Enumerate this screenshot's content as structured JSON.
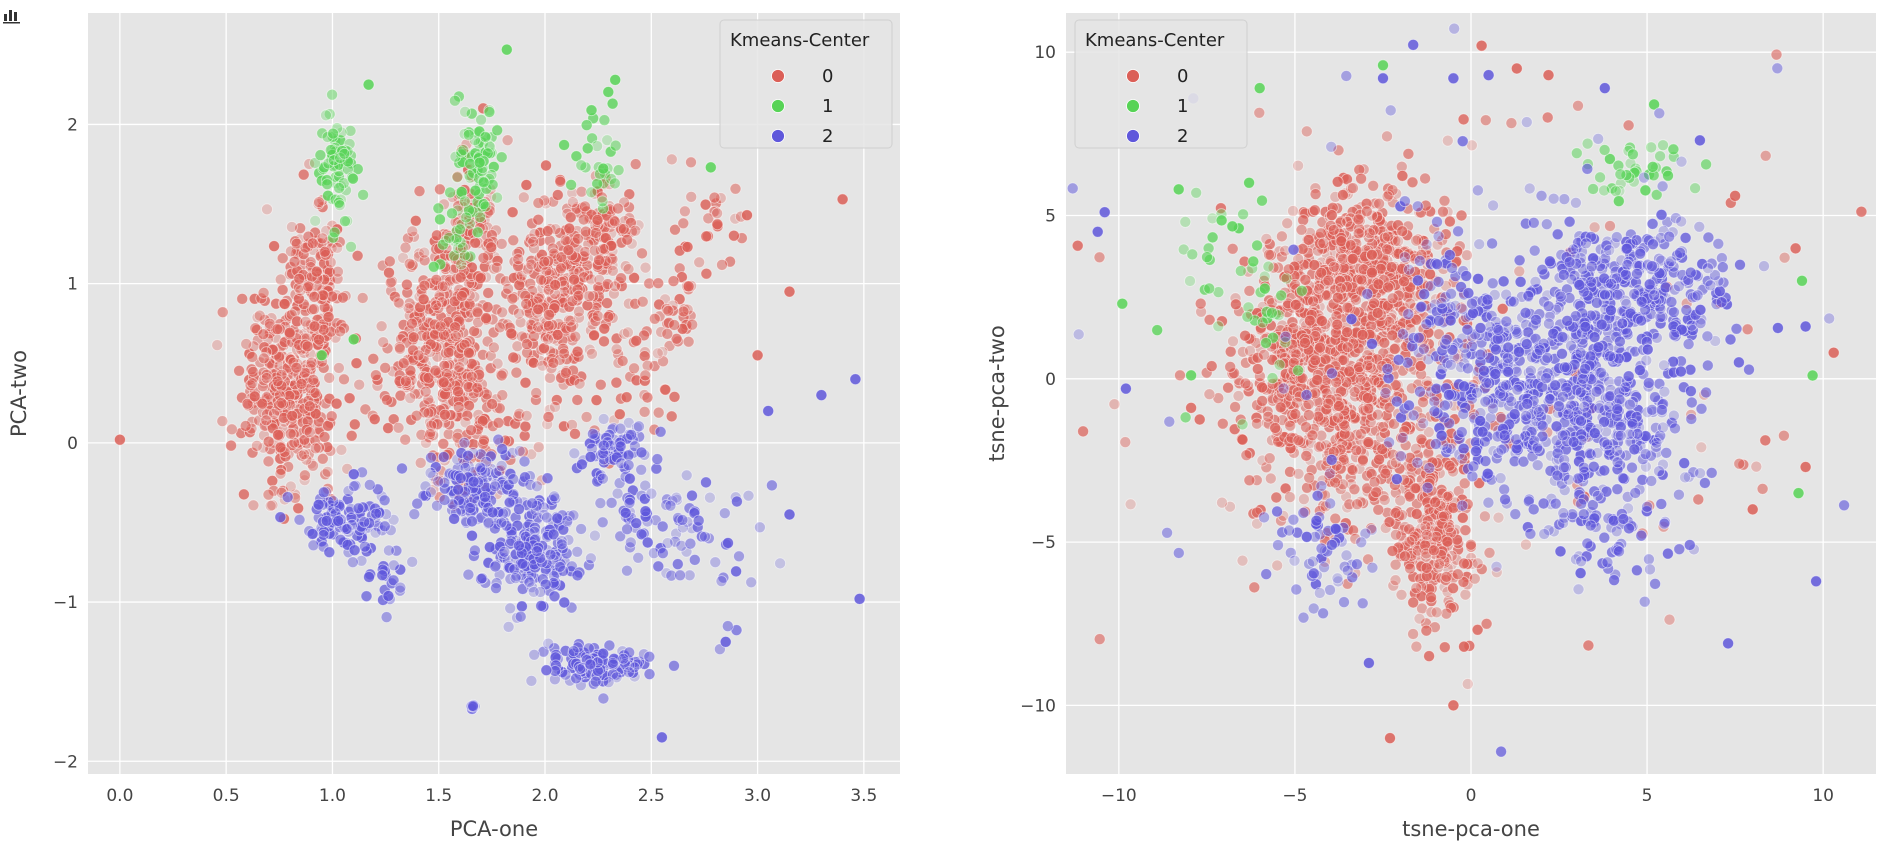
{
  "toolbar": {
    "icon": "bar-chart-icon"
  },
  "style": {
    "plot_bg": "#e5e5e5",
    "grid_color": "#ffffff",
    "text_color": "#444444",
    "palette": {
      "0": "#db5f57",
      "1": "#57d356",
      "2": "#5f57db"
    }
  },
  "chart_data": [
    {
      "type": "scatter",
      "title": "",
      "xlabel": "PCA-one",
      "ylabel": "PCA-two",
      "xlim": [
        -0.15,
        3.67
      ],
      "ylim": [
        -2.08,
        2.7
      ],
      "xticks": [
        0.0,
        0.5,
        1.0,
        1.5,
        2.0,
        2.5,
        3.0,
        3.5
      ],
      "xtick_labels": [
        "0.0",
        "0.5",
        "1.0",
        "1.5",
        "2.0",
        "2.5",
        "3.0",
        "3.5"
      ],
      "yticks": [
        -2,
        -1,
        0,
        1,
        2
      ],
      "ytick_labels": [
        "−2",
        "−1",
        "0",
        "1",
        "2"
      ],
      "grid": true,
      "legend": {
        "title": "Kmeans-Center",
        "position": "top-right",
        "entries": [
          "0",
          "1",
          "2"
        ]
      },
      "series": [
        {
          "name": "0",
          "color": "#db5f57",
          "clusters": [
            {
              "cx": 0.8,
              "cy": 0.35,
              "sx": 0.11,
              "sy": 0.32,
              "n": 380
            },
            {
              "cx": 0.92,
              "cy": 1.0,
              "sx": 0.07,
              "sy": 0.25,
              "n": 140
            },
            {
              "cx": 1.5,
              "cy": 0.6,
              "sx": 0.14,
              "sy": 0.34,
              "n": 420
            },
            {
              "cx": 1.65,
              "cy": 1.3,
              "sx": 0.07,
              "sy": 0.25,
              "n": 120
            },
            {
              "cx": 2.05,
              "cy": 0.9,
              "sx": 0.13,
              "sy": 0.32,
              "n": 340
            },
            {
              "cx": 2.28,
              "cy": 1.3,
              "sx": 0.08,
              "sy": 0.18,
              "n": 100
            },
            {
              "cx": 2.6,
              "cy": 0.8,
              "sx": 0.07,
              "sy": 0.12,
              "n": 40
            },
            {
              "cx": 2.8,
              "cy": 1.35,
              "sx": 0.1,
              "sy": 0.15,
              "n": 30
            },
            {
              "cx": 1.7,
              "cy": 0.1,
              "sx": 0.16,
              "sy": 0.2,
              "n": 60
            },
            {
              "cx": 2.4,
              "cy": 0.4,
              "sx": 0.15,
              "sy": 0.2,
              "n": 40
            }
          ],
          "points": [
            [
              0.0,
              0.02
            ],
            [
              3.4,
              1.53
            ],
            [
              3.15,
              0.95
            ],
            [
              3.0,
              0.55
            ],
            [
              2.95,
              1.43
            ]
          ]
        },
        {
          "name": "1",
          "color": "#57d356",
          "clusters": [
            {
              "cx": 1.03,
              "cy": 1.75,
              "sx": 0.05,
              "sy": 0.2,
              "n": 70
            },
            {
              "cx": 1.68,
              "cy": 1.75,
              "sx": 0.06,
              "sy": 0.2,
              "n": 70
            },
            {
              "cx": 1.6,
              "cy": 1.35,
              "sx": 0.06,
              "sy": 0.15,
              "n": 30
            },
            {
              "cx": 2.25,
              "cy": 1.8,
              "sx": 0.05,
              "sy": 0.15,
              "n": 30
            }
          ],
          "points": [
            [
              1.82,
              2.47
            ],
            [
              1.17,
              2.25
            ],
            [
              2.33,
              2.28
            ],
            [
              2.78,
              1.73
            ],
            [
              0.95,
              0.55
            ],
            [
              1.1,
              0.65
            ]
          ]
        },
        {
          "name": "2",
          "color": "#5f57db",
          "clusters": [
            {
              "cx": 1.05,
              "cy": -0.5,
              "sx": 0.12,
              "sy": 0.1,
              "n": 120
            },
            {
              "cx": 1.25,
              "cy": -0.9,
              "sx": 0.06,
              "sy": 0.08,
              "n": 20
            },
            {
              "cx": 1.7,
              "cy": -0.3,
              "sx": 0.13,
              "sy": 0.15,
              "n": 170
            },
            {
              "cx": 1.95,
              "cy": -0.7,
              "sx": 0.1,
              "sy": 0.15,
              "n": 190
            },
            {
              "cx": 2.25,
              "cy": -1.4,
              "sx": 0.12,
              "sy": 0.06,
              "n": 120
            },
            {
              "cx": 2.32,
              "cy": -0.05,
              "sx": 0.08,
              "sy": 0.1,
              "n": 80
            },
            {
              "cx": 2.5,
              "cy": -0.5,
              "sx": 0.12,
              "sy": 0.12,
              "n": 60
            },
            {
              "cx": 2.8,
              "cy": -0.6,
              "sx": 0.15,
              "sy": 0.25,
              "n": 35
            },
            {
              "cx": 1.66,
              "cy": -1.67,
              "sx": 0.012,
              "sy": 0.02,
              "n": 8
            }
          ],
          "points": [
            [
              3.48,
              -0.98
            ],
            [
              3.46,
              0.4
            ],
            [
              3.3,
              0.3
            ],
            [
              3.05,
              0.2
            ],
            [
              2.55,
              -1.85
            ],
            [
              3.15,
              -0.45
            ],
            [
              2.85,
              -1.25
            ]
          ]
        }
      ]
    },
    {
      "type": "scatter",
      "title": "",
      "xlabel": "tsne-pca-one",
      "ylabel": "tsne-pca-two",
      "xlim": [
        -11.5,
        11.5
      ],
      "ylim": [
        -12.1,
        11.2
      ],
      "xticks": [
        -10,
        -5,
        0,
        5,
        10
      ],
      "xtick_labels": [
        "−10",
        "−5",
        "0",
        "5",
        "10"
      ],
      "yticks": [
        -10,
        -5,
        0,
        5,
        10
      ],
      "ytick_labels": [
        "−10",
        "−5",
        "0",
        "5",
        "10"
      ],
      "grid": true,
      "legend": {
        "title": "Kmeans-Center",
        "position": "top-left",
        "entries": [
          "0",
          "1",
          "2"
        ]
      },
      "series": [
        {
          "name": "0",
          "color": "#db5f57",
          "clusters": [
            {
              "cx": -3.0,
              "cy": 3.5,
              "sx": 1.1,
              "sy": 1.2,
              "n": 500
            },
            {
              "cx": -3.5,
              "cy": -0.5,
              "sx": 1.5,
              "sy": 2.0,
              "n": 650
            },
            {
              "cx": -1.0,
              "cy": -4.5,
              "sx": 0.6,
              "sy": 1.5,
              "n": 280
            },
            {
              "cx": -5.0,
              "cy": 0.5,
              "sx": 0.8,
              "sy": 1.5,
              "n": 200
            },
            {
              "cx": 0.0,
              "cy": 0.0,
              "sx": 6.0,
              "sy": 5.5,
              "n": 110
            }
          ],
          "points": [
            [
              0.3,
              10.2
            ],
            [
              1.3,
              9.5
            ],
            [
              2.2,
              9.3
            ],
            [
              -0.2,
              -8.2
            ],
            [
              -0.5,
              -10.0
            ],
            [
              -2.3,
              -11.0
            ],
            [
              10.3,
              0.8
            ],
            [
              9.5,
              -2.7
            ],
            [
              7.5,
              5.6
            ],
            [
              8.0,
              -4.0
            ]
          ]
        },
        {
          "name": "1",
          "color": "#57d356",
          "clusters": [
            {
              "cx": -7.3,
              "cy": 3.0,
              "sx": 0.8,
              "sy": 1.5,
              "n": 30
            },
            {
              "cx": 4.5,
              "cy": 6.4,
              "sx": 0.8,
              "sy": 0.4,
              "n": 40
            },
            {
              "cx": -5.5,
              "cy": 2.0,
              "sx": 0.4,
              "sy": 1.0,
              "n": 20
            }
          ],
          "points": [
            [
              -2.5,
              9.6
            ],
            [
              -6.0,
              8.9
            ],
            [
              -9.9,
              2.3
            ],
            [
              5.2,
              8.4
            ],
            [
              9.7,
              0.1
            ],
            [
              9.4,
              3.0
            ],
            [
              9.3,
              -3.5
            ],
            [
              -6.3,
              6.0
            ],
            [
              -8.3,
              5.8
            ]
          ]
        },
        {
          "name": "2",
          "color": "#5f57db",
          "clusters": [
            {
              "cx": 4.5,
              "cy": 2.5,
              "sx": 1.5,
              "sy": 1.2,
              "n": 400
            },
            {
              "cx": 1.5,
              "cy": -0.5,
              "sx": 1.5,
              "sy": 1.6,
              "n": 480
            },
            {
              "cx": 4.0,
              "cy": -1.2,
              "sx": 1.2,
              "sy": 1.0,
              "n": 180
            },
            {
              "cx": 4.0,
              "cy": -4.5,
              "sx": 1.0,
              "sy": 0.8,
              "n": 80
            },
            {
              "cx": -4.0,
              "cy": -5.0,
              "sx": 0.6,
              "sy": 1.0,
              "n": 60
            },
            {
              "cx": -0.5,
              "cy": 2.5,
              "sx": 0.8,
              "sy": 1.2,
              "n": 60
            },
            {
              "cx": 0.0,
              "cy": 0.0,
              "sx": 5.0,
              "sy": 5.0,
              "n": 60
            }
          ],
          "points": [
            [
              -10.6,
              4.5
            ],
            [
              -10.4,
              5.1
            ],
            [
              -9.8,
              -0.3
            ],
            [
              0.5,
              9.3
            ],
            [
              -0.5,
              9.2
            ],
            [
              3.8,
              8.9
            ],
            [
              6.5,
              7.3
            ],
            [
              9.5,
              1.6
            ],
            [
              9.8,
              -6.2
            ],
            [
              7.3,
              -8.1
            ],
            [
              -2.5,
              9.2
            ],
            [
              -2.9,
              -8.7
            ]
          ]
        }
      ]
    }
  ]
}
